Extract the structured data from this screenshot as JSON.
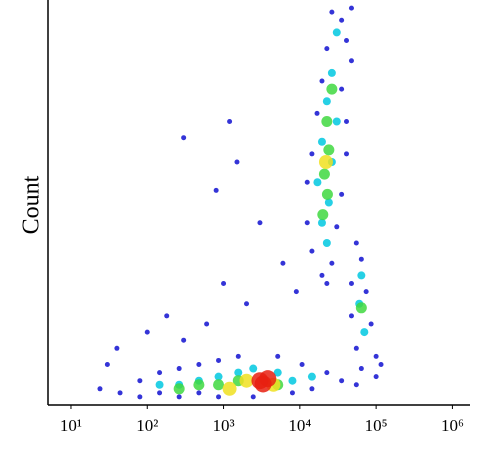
{
  "chart_data": {
    "type": "scatter",
    "y_label": "Count",
    "x_log": true,
    "xlim": [
      5,
      1700000
    ],
    "ylim": [
      0,
      100
    ],
    "xticks": [
      {
        "value": 10,
        "label": "10¹"
      },
      {
        "value": 100,
        "label": "10²"
      },
      {
        "value": 1000,
        "label": "10³"
      },
      {
        "value": 10000,
        "label": "10⁴"
      },
      {
        "value": 100000,
        "label": "10⁵"
      },
      {
        "value": 1000000,
        "label": "10⁶"
      }
    ],
    "series": [
      {
        "color": "#1010d0",
        "x": [
          47500,
          35300,
          26300,
          40900,
          22600,
          47500,
          19500,
          35300,
          16800,
          40900,
          14400,
          40900,
          12500,
          35300,
          12500,
          30500,
          14400,
          26300,
          19500,
          22600,
          55000,
          64000,
          47500,
          74000,
          47500,
          86000,
          55000,
          100000,
          64000,
          116000,
          44,
          80,
          80,
          145,
          145,
          262,
          262,
          475,
          475,
          860,
          860,
          1560,
          2450,
          5130,
          8000,
          10700,
          14400,
          22600,
          35300,
          55000,
          100000,
          24,
          30,
          100,
          180,
          300,
          600,
          1000,
          2000,
          1500,
          300,
          800,
          3000,
          6000,
          9000,
          1200,
          40
        ],
        "values": [
          98,
          95,
          97,
          90,
          88,
          85,
          80,
          78,
          72,
          70,
          62,
          62,
          55,
          52,
          45,
          44,
          38,
          35,
          32,
          30,
          40,
          36,
          30,
          28,
          22,
          20,
          14,
          12,
          9,
          10,
          3,
          2,
          6,
          3,
          8,
          2,
          9,
          3,
          10,
          2,
          11,
          12,
          2,
          12,
          3,
          10,
          4,
          8,
          6,
          5,
          7,
          4,
          10,
          18,
          22,
          16,
          20,
          30,
          25,
          60,
          66,
          53,
          45,
          35,
          28,
          70,
          14
        ]
      },
      {
        "color": "#00c8e0",
        "x": [
          30500,
          26300,
          22600,
          30500,
          19500,
          26300,
          17000,
          24000,
          19500,
          22600,
          64000,
          60000,
          70000,
          145,
          262,
          475,
          860,
          1560,
          2450,
          5130,
          8000,
          14400
        ],
        "values": [
          92,
          82,
          75,
          70,
          65,
          60,
          55,
          50,
          45,
          40,
          32,
          25,
          18,
          5,
          5,
          6,
          7,
          8,
          9,
          8,
          6,
          7
        ]
      },
      {
        "color": "#40d840",
        "x": [
          26300,
          22600,
          24000,
          21000,
          23000,
          20000,
          64000,
          262,
          475,
          860,
          5130,
          1560
        ],
        "values": [
          78,
          70,
          63,
          57,
          52,
          47,
          24,
          4,
          5,
          5,
          5,
          6
        ]
      },
      {
        "color": "#f0e020",
        "x": [
          2000,
          4500,
          1200,
          22000
        ],
        "values": [
          6,
          5,
          4,
          60
        ]
      },
      {
        "color": "#e82010",
        "x": [
          3000,
          3800,
          3300
        ],
        "values": [
          6,
          6.5,
          5.2
        ]
      }
    ]
  }
}
